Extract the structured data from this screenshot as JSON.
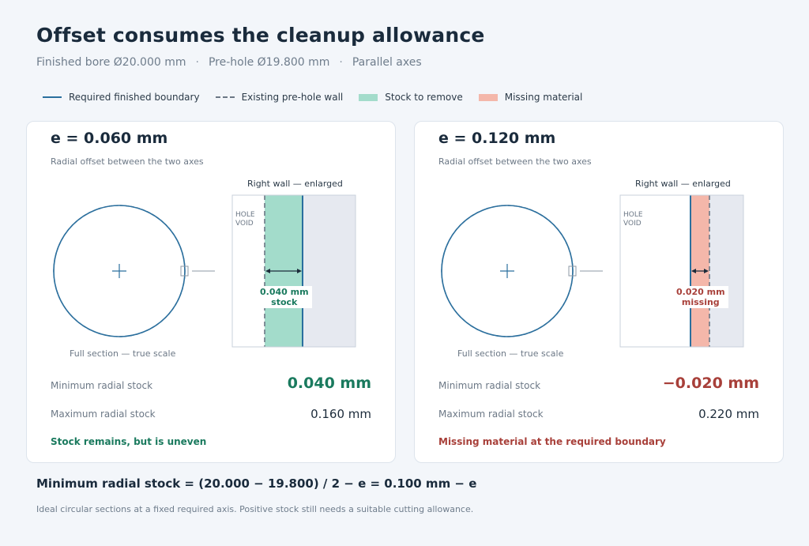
{
  "title": "Offset consumes the cleanup allowance",
  "subtitle": {
    "finished": "Finished bore Ø20.000 mm",
    "prehole": "Pre-hole Ø19.800 mm",
    "axes": "Parallel axes",
    "separator": "·"
  },
  "legend": [
    {
      "label": "Required finished boundary",
      "icon": "solid-line"
    },
    {
      "label": "Existing pre-hole wall",
      "icon": "dashed-line"
    },
    {
      "label": "Stock to remove",
      "icon": "green-swatch"
    },
    {
      "label": "Missing material",
      "icon": "red-swatch"
    }
  ],
  "colors": {
    "boundary": "#2a6f9e",
    "prehole_wall": "#6b7785",
    "stock": "#a3dccb",
    "missing": "#f4b7aa",
    "material": "#e6e9f0",
    "positive": "#1a7a5e",
    "negative": "#a8403a"
  },
  "cards": [
    {
      "e_title": "e = 0.060 mm",
      "e_sub": "Radial offset between the two axes",
      "enlarged_title": "Right wall — enlarged",
      "void_label_1": "HOLE",
      "void_label_2": "VOID",
      "callout_value": "0.040 mm",
      "callout_word": "stock",
      "section_label": "Full section — true scale",
      "min_label": "Minimum radial stock",
      "min_value": "0.040 mm",
      "max_label": "Maximum radial stock",
      "max_value": "0.160 mm",
      "status": "Stock remains, but is uneven",
      "min_stock_mm": 0.04,
      "kind": "stock"
    },
    {
      "e_title": "e = 0.120 mm",
      "e_sub": "Radial offset between the two axes",
      "enlarged_title": "Right wall — enlarged",
      "void_label_1": "HOLE",
      "void_label_2": "VOID",
      "callout_value": "0.020 mm",
      "callout_word": "missing",
      "section_label": "Full section — true scale",
      "min_label": "Minimum radial stock",
      "min_value": "−0.020 mm",
      "max_label": "Maximum radial stock",
      "max_value": "0.220 mm",
      "status": "Missing material at the required boundary",
      "min_stock_mm": -0.02,
      "kind": "missing"
    }
  ],
  "formula": "Minimum radial stock = (20.000 − 19.800) / 2 − e = 0.100 mm − e",
  "footnote": "Ideal circular sections at a fixed required axis. Positive stock still needs a suitable cutting allowance."
}
